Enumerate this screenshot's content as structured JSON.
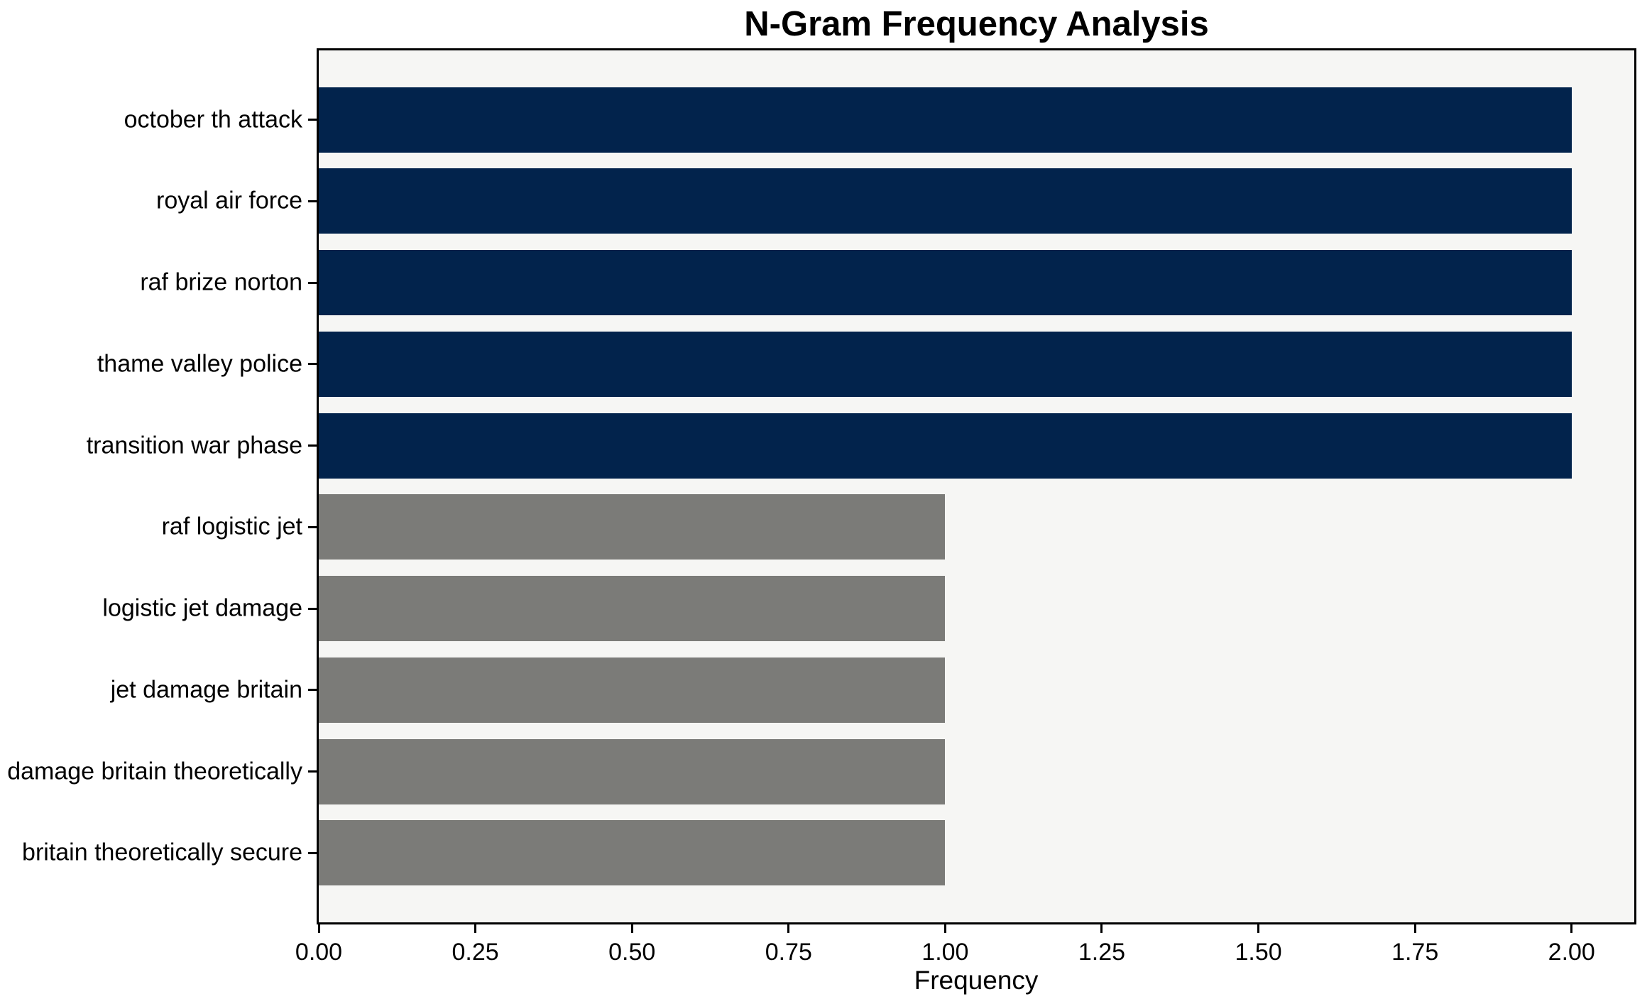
{
  "chart_data": {
    "type": "bar",
    "orientation": "horizontal",
    "title": "N-Gram Frequency Analysis",
    "xlabel": "Frequency",
    "categories": [
      "october th attack",
      "royal air force",
      "raf brize norton",
      "thame valley police",
      "transition war phase",
      "raf logistic jet",
      "logistic jet damage",
      "jet damage britain",
      "damage britain theoretically",
      "britain theoretically secure"
    ],
    "values": [
      2,
      2,
      2,
      2,
      2,
      1,
      1,
      1,
      1,
      1
    ],
    "bar_colors": [
      "#02234c",
      "#02234c",
      "#02234c",
      "#02234c",
      "#02234c",
      "#7b7b78",
      "#7b7b78",
      "#7b7b78",
      "#7b7b78",
      "#7b7b78"
    ],
    "highlight_color": "#02234c",
    "default_color": "#7b7b78",
    "xlim": [
      0,
      2.1
    ],
    "xtick_values": [
      0,
      0.25,
      0.5,
      0.75,
      1.0,
      1.25,
      1.5,
      1.75,
      2.0
    ],
    "xtick_labels": [
      "0.00",
      "0.25",
      "0.50",
      "0.75",
      "1.00",
      "1.25",
      "1.50",
      "1.75",
      "2.00"
    ],
    "grid": false,
    "plot_bg": "#f6f6f4",
    "figure_bg": "#ffffff"
  }
}
